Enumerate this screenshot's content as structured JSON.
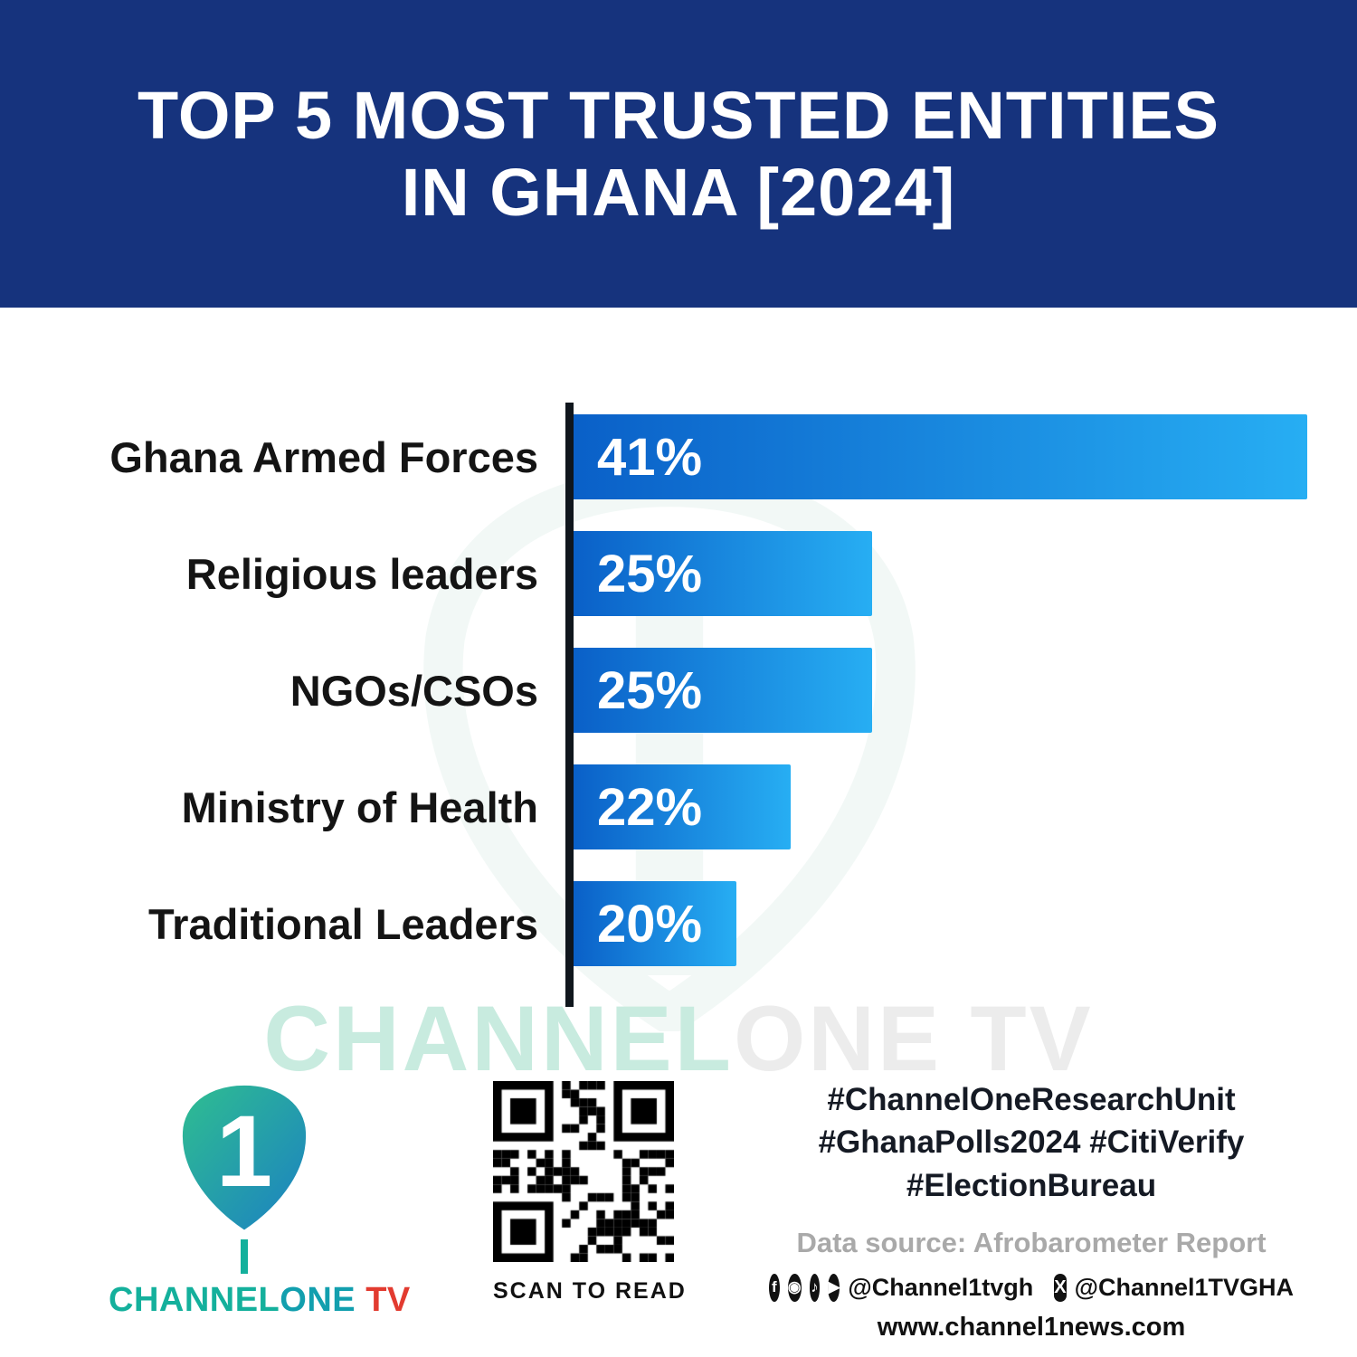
{
  "header": {
    "title_line1": "TOP 5 MOST TRUSTED ENTITIES",
    "title_line2": "IN GHANA [2024]"
  },
  "chart_data": {
    "type": "bar",
    "orientation": "horizontal",
    "title": "TOP 5 MOST TRUSTED ENTITIES IN GHANA [2024]",
    "categories": [
      "Ghana Armed Forces",
      "Religious leaders",
      "NGOs/CSOs",
      "Ministry of Health",
      "Traditional Leaders"
    ],
    "values": [
      41,
      25,
      25,
      22,
      20
    ],
    "value_labels": [
      "41%",
      "25%",
      "25%",
      "22%",
      "20%"
    ],
    "unit": "%",
    "xlim": [
      14,
      41
    ],
    "grid": false,
    "legend": false,
    "bar_gradient": [
      "#0a60c8",
      "#27aef3"
    ],
    "axis_color": "#10161d"
  },
  "watermark": {
    "part1": "CHANNEL",
    "part2": "ONE TV"
  },
  "footer": {
    "brand": {
      "channel": "CHANNEL",
      "one": "ONE",
      "tv": " TV",
      "logo_digit": "1"
    },
    "qr": {
      "caption": "SCAN TO READ"
    },
    "hashtags": [
      "#ChannelOneResearchUnit",
      "#GhanaPolls2024 #CitiVerify",
      "#ElectionBureau"
    ],
    "data_source": "Data source: Afrobarometer Report",
    "social": {
      "icons": [
        "facebook-icon",
        "instagram-icon",
        "tiktok-icon",
        "youtube-icon",
        "x-icon"
      ],
      "handle1": "@Channel1tvgh",
      "handle2": "@Channel1TVGHA"
    },
    "website": "www.channel1news.com"
  },
  "colors": {
    "header_bg": "#16337d",
    "bar_start": "#0a60c8",
    "bar_end": "#27aef3",
    "brand_teal": "#14b09c",
    "brand_red": "#e23b30"
  }
}
